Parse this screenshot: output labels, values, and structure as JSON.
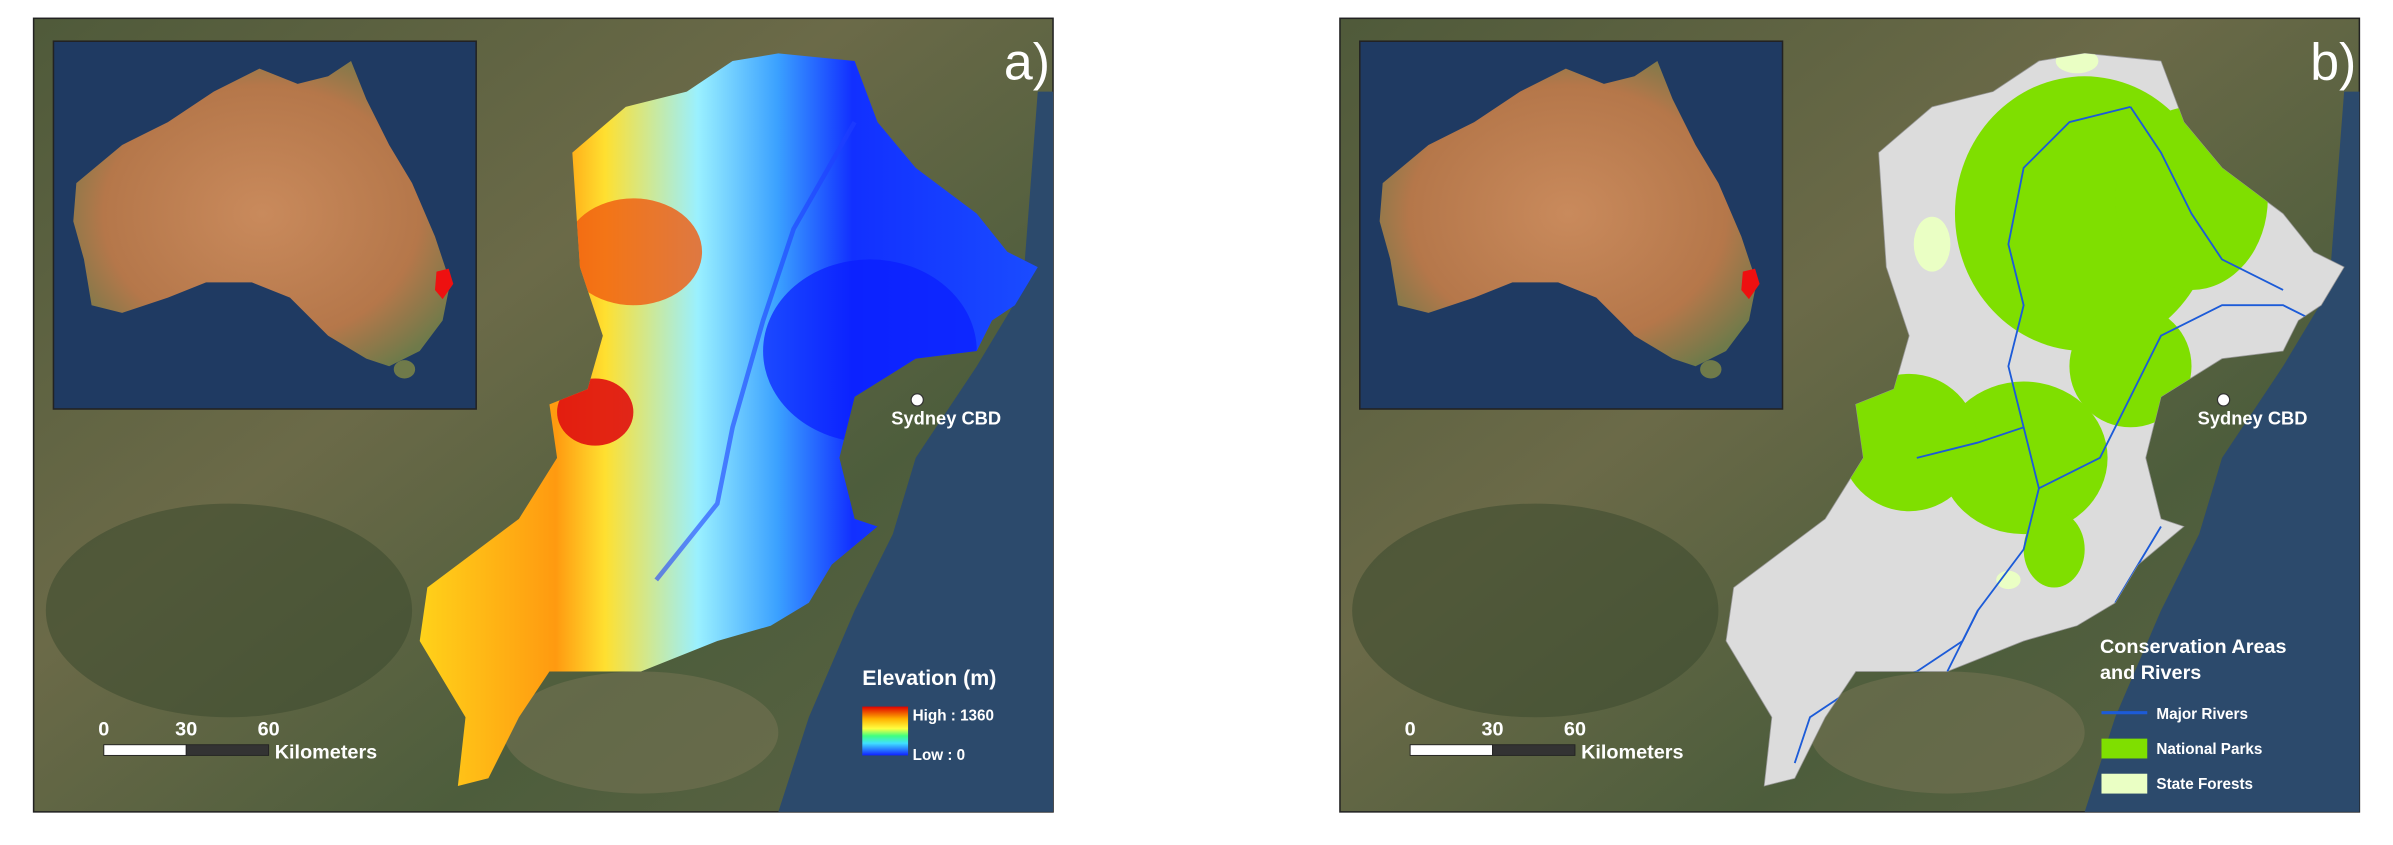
{
  "panels": [
    {
      "label": "a)",
      "city": "Sydney CBD",
      "scale": {
        "ticks": [
          0,
          30,
          60
        ],
        "unit": "Kilometers"
      },
      "legend": {
        "title": "Elevation (m)",
        "high": "High : 1360",
        "low": "Low : 0"
      }
    },
    {
      "label": "b)",
      "city": "Sydney CBD",
      "scale": {
        "ticks": [
          0,
          30,
          60
        ],
        "unit": "Kilometers"
      },
      "legend": {
        "title": [
          "Conservation Areas",
          "and Rivers"
        ],
        "items": [
          "Major Rivers",
          "National Parks",
          "State Forests"
        ]
      }
    }
  ]
}
